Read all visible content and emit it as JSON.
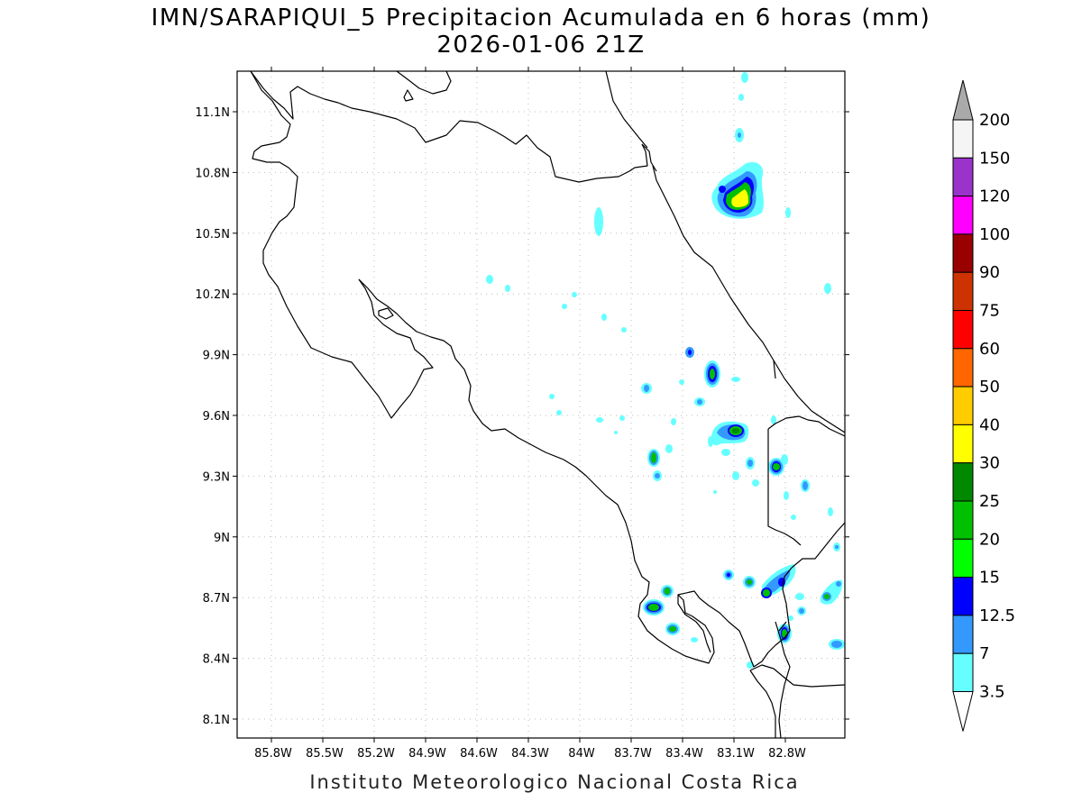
{
  "header": {
    "title": "IMN/SARAPIQUI_5 Precipitacion Acumulada en 6 horas (mm)",
    "subtitle": "2026-01-06 21Z"
  },
  "footer": {
    "credit": "Instituto Meteorologico Nacional Costa Rica"
  },
  "map": {
    "lat_ticks": [
      "11.1N",
      "10.8N",
      "10.5N",
      "10.2N",
      "9.9N",
      "9.6N",
      "9.3N",
      "9N",
      "8.7N",
      "8.4N",
      "8.1N"
    ],
    "lon_ticks": [
      "85.8W",
      "85.5W",
      "85.2W",
      "84.9W",
      "84.6W",
      "84.3W",
      "84W",
      "83.7W",
      "83.4W",
      "83.1W",
      "82.8W"
    ],
    "grid": "dotted"
  },
  "colorbar": {
    "levels": [
      "200",
      "150",
      "120",
      "100",
      "90",
      "75",
      "60",
      "50",
      "40",
      "30",
      "25",
      "20",
      "15",
      "12.5",
      "7",
      "3.5"
    ],
    "colors": [
      "#f5f5f5",
      "#9933cc",
      "#ff00ff",
      "#990000",
      "#cc3300",
      "#ff0000",
      "#ff6600",
      "#ffcc00",
      "#ffff00",
      "#008800",
      "#00c000",
      "#00ff00",
      "#0000ff",
      "#3399ff",
      "#66ffff"
    ],
    "top_arrow_color": "#aaaaaa",
    "bottom_arrow_color": "#ffffff"
  }
}
